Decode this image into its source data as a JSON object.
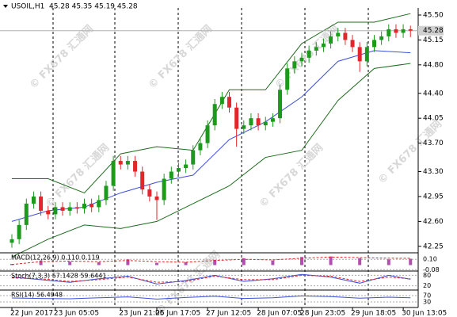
{
  "chart_data": {
    "type": "candlestick",
    "symbol": "USOIL,H1",
    "ohlc_text": "45.28 45.35 45.19 45.28",
    "watermark": "© FX678 汇通网",
    "categories": [
      "22 Jun 2017",
      null,
      null,
      null,
      null,
      null,
      "23 Jun 05:05",
      null,
      null,
      null,
      null,
      null,
      null,
      null,
      null,
      "23 Jun 21:05",
      null,
      null,
      null,
      null,
      "26 Jun 17:05",
      null,
      null,
      null,
      null,
      null,
      null,
      "27 Jun 12:05",
      null,
      null,
      null,
      null,
      null,
      null,
      "28 Jun 07:05",
      null,
      null,
      null,
      null,
      null,
      "28 Jun 23:05",
      null,
      null,
      null,
      null,
      null,
      null,
      "29 Jun 18:05",
      null,
      null,
      null,
      null,
      null,
      null,
      "30 Jun 13:05",
      null
    ],
    "open": [
      42.3,
      42.35,
      42.55,
      42.85,
      42.95,
      42.75,
      42.7,
      42.8,
      42.75,
      42.8,
      42.78,
      42.85,
      42.8,
      42.9,
      43.1,
      43.45,
      43.4,
      43.45,
      43.3,
      43.05,
      42.95,
      42.9,
      43.2,
      43.3,
      43.35,
      43.4,
      43.6,
      43.7,
      43.95,
      44.25,
      44.35,
      44.2,
      43.9,
      43.95,
      44.05,
      43.95,
      44.0,
      44.05,
      44.45,
      44.75,
      44.85,
      44.9,
      45.0,
      45.05,
      45.1,
      45.2,
      45.25,
      45.15,
      45.05,
      44.85,
      45.05,
      45.15,
      45.2,
      45.3,
      45.25,
      45.3
    ],
    "high": [
      42.42,
      42.62,
      42.92,
      43.02,
      43.02,
      42.82,
      42.87,
      42.87,
      42.87,
      42.87,
      42.92,
      42.92,
      42.97,
      43.17,
      43.52,
      43.52,
      43.52,
      43.52,
      43.37,
      43.12,
      43.02,
      43.27,
      43.37,
      43.42,
      43.47,
      43.67,
      43.77,
      44.02,
      44.32,
      44.42,
      44.42,
      44.27,
      44.02,
      44.12,
      44.12,
      44.07,
      44.12,
      44.52,
      44.82,
      44.92,
      44.97,
      45.07,
      45.12,
      45.17,
      45.27,
      45.32,
      45.32,
      45.22,
      45.12,
      45.12,
      45.22,
      45.27,
      45.37,
      45.37,
      45.37,
      45.35
    ],
    "low": [
      42.23,
      42.28,
      42.48,
      42.78,
      42.68,
      42.63,
      42.63,
      42.68,
      42.68,
      42.71,
      42.71,
      42.73,
      42.73,
      42.83,
      43.03,
      43.33,
      43.33,
      43.23,
      42.98,
      42.88,
      42.62,
      42.83,
      43.13,
      43.23,
      43.28,
      43.33,
      43.53,
      43.63,
      43.88,
      44.18,
      44.13,
      43.65,
      43.83,
      43.88,
      43.88,
      43.88,
      43.93,
      43.98,
      44.38,
      44.68,
      44.78,
      44.83,
      44.93,
      44.98,
      45.03,
      45.13,
      45.08,
      44.98,
      44.7,
      44.78,
      44.98,
      45.08,
      45.13,
      45.18,
      45.18,
      45.19
    ],
    "close": [
      42.35,
      42.55,
      42.85,
      42.95,
      42.75,
      42.7,
      42.8,
      42.75,
      42.8,
      42.78,
      42.85,
      42.8,
      42.9,
      43.1,
      43.45,
      43.4,
      43.45,
      43.3,
      43.05,
      42.95,
      42.9,
      43.2,
      43.3,
      43.35,
      43.4,
      43.6,
      43.7,
      43.95,
      44.25,
      44.35,
      44.2,
      43.9,
      43.95,
      44.05,
      43.95,
      44.0,
      44.05,
      44.45,
      44.75,
      44.85,
      44.9,
      45.0,
      45.05,
      45.1,
      45.2,
      45.25,
      45.15,
      45.05,
      44.85,
      45.05,
      45.15,
      45.2,
      45.3,
      45.25,
      45.3,
      45.28
    ],
    "up_color": "#1b9a1b",
    "down_color": "#e3262b",
    "ylim": [
      42.17,
      45.6
    ],
    "yticks": [
      {
        "value": 45.5,
        "label": "45.50"
      },
      45.15,
      {
        "value": 44.8,
        "label": "44.80"
      },
      {
        "value": 44.4,
        "label": "44.40"
      },
      44.05,
      {
        "value": 43.7,
        "label": "43.70"
      },
      {
        "value": 43.3,
        "label": "43.30"
      },
      42.95,
      {
        "value": 42.6,
        "label": "42.60"
      },
      42.25
    ],
    "current_price": {
      "value": 45.28,
      "label": "45.28"
    },
    "bands": {
      "x": [
        0,
        5,
        10,
        15,
        20,
        25,
        30,
        35,
        40,
        45,
        50,
        55
      ],
      "series": [
        {
          "color": "#1e6b1e",
          "values": [
            43.2,
            43.2,
            43.0,
            43.55,
            43.65,
            43.6,
            44.45,
            44.45,
            45.1,
            45.4,
            45.4,
            45.52
          ]
        },
        {
          "color": "#3b4fd8",
          "values": [
            42.6,
            42.75,
            42.8,
            43.0,
            43.15,
            43.25,
            43.75,
            44.0,
            44.35,
            44.85,
            45.0,
            44.97
          ]
        },
        {
          "color": "#1e6b1e",
          "values": [
            42.1,
            42.35,
            42.55,
            42.5,
            42.6,
            42.85,
            43.1,
            43.5,
            43.6,
            44.3,
            44.75,
            44.82
          ]
        }
      ]
    },
    "indicator_x": [
      0,
      4,
      8,
      12,
      16,
      20,
      24,
      28,
      32,
      36,
      40,
      44,
      48,
      52,
      55
    ],
    "indicators": [
      {
        "label": "MACD(12,26,9) 0.110 0.119",
        "ylim": [
          -0.09,
          0.2
        ],
        "yticks": [
          {
            "value": 0.1,
            "label": "0.10"
          },
          -0.08
        ],
        "series": [
          {
            "style": "bar",
            "color": "#b04fb0",
            "values": [
              0.02,
              0.08,
              0.06,
              0.05,
              0.1,
              0.04,
              0.05,
              0.09,
              0.12,
              0.08,
              0.14,
              0.15,
              0.12,
              0.1,
              0.11
            ]
          },
          {
            "style": "line",
            "color": "#e3262b",
            "values": [
              0.01,
              0.06,
              0.07,
              0.06,
              0.08,
              0.06,
              0.05,
              0.08,
              0.1,
              0.09,
              0.12,
              0.14,
              0.13,
              0.12,
              0.119
            ]
          }
        ]
      },
      {
        "label": "Stoch(7,3,3) 57.1428 59.6441",
        "ylim": [
          0,
          100
        ],
        "yticks": [
          80,
          20
        ],
        "series": [
          {
            "style": "line",
            "color": "#3b4fd8",
            "values": [
              70,
              55,
              40,
              60,
              75,
              30,
              50,
              80,
              45,
              60,
              85,
              70,
              35,
              80,
              57.14
            ]
          },
          {
            "style": "line",
            "color": "#e3262b",
            "values": [
              65,
              60,
              45,
              55,
              70,
              40,
              45,
              75,
              55,
              55,
              80,
              75,
              45,
              70,
              59.64
            ]
          }
        ]
      },
      {
        "label": "RSI(14) 56.4948",
        "ylim": [
          0,
          100
        ],
        "yticks": [
          70,
          30
        ],
        "series": [
          {
            "style": "line",
            "color": "#3b4fd8",
            "values": [
              55,
              52,
              50,
              56,
              62,
              48,
              58,
              66,
              52,
              56,
              68,
              64,
              54,
              60,
              56.49
            ]
          }
        ]
      }
    ]
  }
}
